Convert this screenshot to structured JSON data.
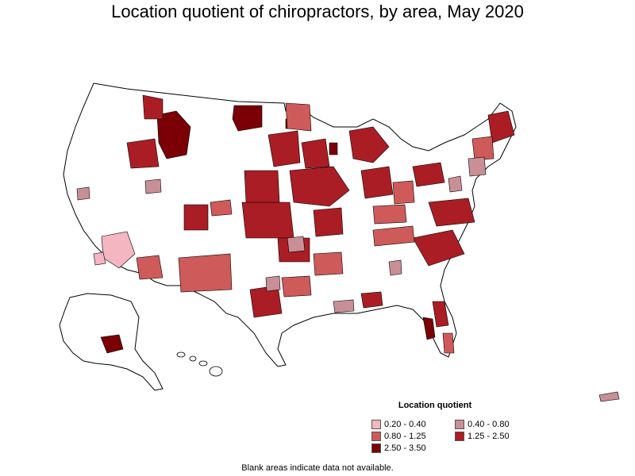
{
  "title": "Location quotient of chiropractors, by area, May 2020",
  "legend": {
    "title": "Location quotient",
    "items": [
      {
        "label": "0.20 - 0.40",
        "color": "#f4b6c0"
      },
      {
        "label": "0.40 - 0.80",
        "color": "#c98f96"
      },
      {
        "label": "0.80 - 1.25",
        "color": "#cf5a5a"
      },
      {
        "label": "1.25 - 2.50",
        "color": "#ab1d24"
      },
      {
        "label": "2.50 - 3.50",
        "color": "#7a0006"
      }
    ]
  },
  "footnote": "Blank areas indicate data not available.",
  "colors": {
    "outline": "#000000",
    "blank": "#ffffff"
  }
}
